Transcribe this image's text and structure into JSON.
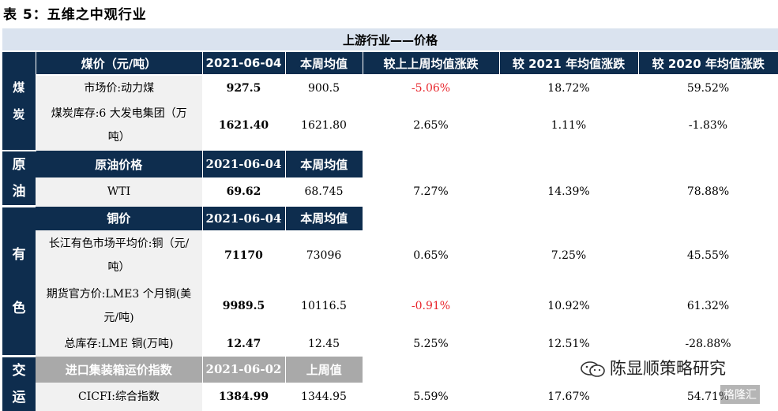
{
  "title": "表 5：五维之中观行业",
  "banner": "上游行业——价格",
  "columns": [
    "2021-06-04",
    "本周均值",
    "较上上周均值涨跌",
    "较 2021 年均值涨跌",
    "较 2020 年均值涨跌"
  ],
  "coal": {
    "category": "煤炭",
    "header": "煤价（元/吨）",
    "date": "2021-06-04",
    "avg_label": "本周均值",
    "rows": [
      {
        "label": "市场价:动力煤",
        "value": "927.5",
        "avg": "900.5",
        "wow": "-5.06%",
        "ytd2021": "18.72%",
        "ytd2020": "59.52%"
      },
      {
        "label": "煤炭库存:6 大发电集团（万吨）",
        "value": "1621.40",
        "avg": "1621.80",
        "wow": "2.65%",
        "ytd2021": "1.11%",
        "ytd2020": "-1.83%"
      }
    ]
  },
  "oil": {
    "category": "原油",
    "header": "原油价格",
    "date": "2021-06-04",
    "avg_label": "本周均值",
    "rows": [
      {
        "label": "WTI",
        "value": "69.62",
        "avg": "68.745",
        "wow": "7.27%",
        "ytd2021": "14.39%",
        "ytd2020": "78.88%"
      }
    ]
  },
  "metals": {
    "category": "有色",
    "header": "铜价",
    "date": "2021-06-04",
    "avg_label": "本周均值",
    "rows": [
      {
        "label": "长江有色市场平均价:铜（元/吨）",
        "value": "71170",
        "avg": "73096",
        "wow": "0.65%",
        "ytd2021": "7.25%",
        "ytd2020": "45.55%"
      },
      {
        "label": "期货官方价:LME3 个月铜(美元/吨)",
        "value": "9989.5",
        "avg": "10116.5",
        "wow": "-0.91%",
        "ytd2021": "10.92%",
        "ytd2020": "61.32%"
      },
      {
        "label": "总库存:LME 铜(万吨)",
        "value": "12.47",
        "avg": "12.45",
        "wow": "5.25%",
        "ytd2021": "12.51%",
        "ytd2020": "-28.88%"
      }
    ]
  },
  "transport": {
    "category": "交运",
    "header": "进口集装箱运价指数",
    "date": "2021-06-02",
    "avg_label": "上周值",
    "rows": [
      {
        "label": "CICFI:综合指数",
        "value": "1384.99",
        "avg": "1344.95",
        "wow": "5.59%",
        "ytd2021": "17.67%",
        "ytd2020": "54.71%"
      }
    ]
  },
  "watermark": "陈显顺策略研究",
  "watermark2": "格隆汇"
}
